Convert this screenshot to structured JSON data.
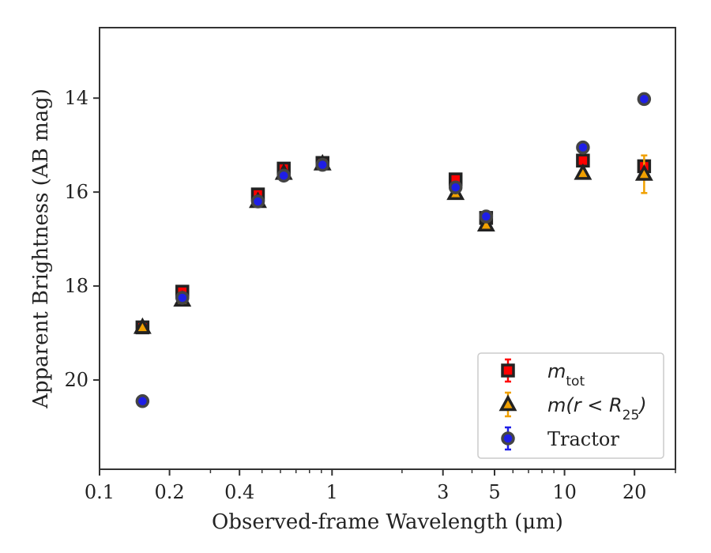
{
  "chart_data": {
    "type": "scatter",
    "title": "",
    "xlabel": "Observed-frame Wavelength (μm)",
    "ylabel": "Apparent Brightness (AB mag)",
    "xscale": "log",
    "xlim": [
      0.1,
      30
    ],
    "ylim": [
      21.9,
      12.5
    ],
    "y_inverted": true,
    "xticks": [
      {
        "value": 0.1,
        "label": "0.1"
      },
      {
        "value": 0.2,
        "label": "0.2"
      },
      {
        "value": 0.4,
        "label": "0.4"
      },
      {
        "value": 1,
        "label": "1"
      },
      {
        "value": 3,
        "label": "3"
      },
      {
        "value": 5,
        "label": "5"
      },
      {
        "value": 10,
        "label": "10"
      },
      {
        "value": 20,
        "label": "20"
      }
    ],
    "yticks": [
      {
        "value": 14,
        "label": "14"
      },
      {
        "value": 16,
        "label": "16"
      },
      {
        "value": 18,
        "label": "18"
      },
      {
        "value": 20,
        "label": "20"
      }
    ],
    "grid": false,
    "legend_position": "lower-right",
    "series": [
      {
        "name": "m_tot",
        "legend": {
          "base": "m",
          "sub": "tot"
        },
        "marker": "square",
        "face_color": "#ff0000",
        "edge_color": "#222222",
        "error_color": "#ff0000",
        "points": [
          {
            "x": 0.153,
            "y": 18.88,
            "err": 0.08
          },
          {
            "x": 0.227,
            "y": 18.12,
            "err": 0.06
          },
          {
            "x": 0.48,
            "y": 16.05,
            "err": 0.05
          },
          {
            "x": 0.62,
            "y": 15.5,
            "err": 0.05
          },
          {
            "x": 0.91,
            "y": 15.38,
            "err": 0.05
          },
          {
            "x": 3.4,
            "y": 15.73,
            "err": 0.05
          },
          {
            "x": 4.6,
            "y": 16.55,
            "err": 0.05
          },
          {
            "x": 12.0,
            "y": 15.33,
            "err": 0.08
          },
          {
            "x": 22.0,
            "y": 15.45,
            "err": 0.1
          }
        ]
      },
      {
        "name": "m(r < R25)",
        "legend": {
          "base": "m(r < R",
          "sub": "25",
          "tail": ")"
        },
        "marker": "triangle",
        "face_color": "#f0a000",
        "edge_color": "#222222",
        "error_color": "#f0a000",
        "points": [
          {
            "x": 0.153,
            "y": 18.88,
            "err": 0.08
          },
          {
            "x": 0.227,
            "y": 18.3,
            "err": 0.06
          },
          {
            "x": 0.48,
            "y": 16.2,
            "err": 0.05
          },
          {
            "x": 0.62,
            "y": 15.6,
            "err": 0.05
          },
          {
            "x": 0.91,
            "y": 15.4,
            "err": 0.05
          },
          {
            "x": 3.4,
            "y": 16.03,
            "err": 0.05
          },
          {
            "x": 4.6,
            "y": 16.7,
            "err": 0.05
          },
          {
            "x": 12.0,
            "y": 15.6,
            "err": 0.08
          },
          {
            "x": 22.0,
            "y": 15.62,
            "err": 0.4
          }
        ]
      },
      {
        "name": "Tractor",
        "legend": {
          "base": "Tractor"
        },
        "marker": "circle",
        "face_color": "#1e1ee6",
        "edge_color": "#444444",
        "error_color": "#1e1ee6",
        "points": [
          {
            "x": 0.153,
            "y": 20.45,
            "err": 0.08
          },
          {
            "x": 0.227,
            "y": 18.25,
            "err": 0.05
          },
          {
            "x": 0.48,
            "y": 16.2,
            "err": 0.05
          },
          {
            "x": 0.62,
            "y": 15.65,
            "err": 0.05
          },
          {
            "x": 0.91,
            "y": 15.42,
            "err": 0.05
          },
          {
            "x": 3.4,
            "y": 15.9,
            "err": 0.05
          },
          {
            "x": 4.6,
            "y": 16.52,
            "err": 0.05
          },
          {
            "x": 12.0,
            "y": 15.05,
            "err": 0.06
          },
          {
            "x": 22.0,
            "y": 14.02,
            "err": 0.06
          }
        ]
      }
    ]
  }
}
